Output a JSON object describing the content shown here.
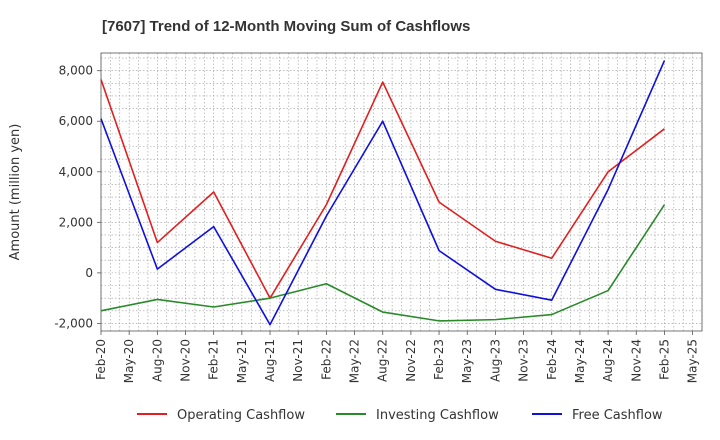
{
  "chart_data": {
    "type": "line",
    "title": "[7607]  Trend of 12-Month Moving Sum of Cashflows",
    "xlabel": "",
    "ylabel": "Amount (million yen)",
    "ylim": [
      -2300,
      8700
    ],
    "yticks": [
      -2000,
      0,
      2000,
      4000,
      6000,
      8000
    ],
    "ytick_labels": [
      "-2,000",
      "0",
      "2,000",
      "4,000",
      "6,000",
      "8,000"
    ],
    "x_start": "Feb-20",
    "x_ticks": [
      "Feb-20",
      "May-20",
      "Aug-20",
      "Nov-20",
      "Feb-21",
      "May-21",
      "Aug-21",
      "Nov-21",
      "Feb-22",
      "May-22",
      "Aug-22",
      "Nov-22",
      "Feb-23",
      "May-23",
      "Aug-23",
      "Nov-23",
      "Feb-24",
      "May-24",
      "Aug-24",
      "Nov-24",
      "Feb-25",
      "May-25"
    ],
    "x": [
      "Feb-20",
      "Aug-20",
      "Feb-21",
      "Aug-21",
      "Feb-22",
      "Aug-22",
      "Feb-23",
      "Aug-23",
      "Feb-24",
      "Aug-24",
      "Feb-25"
    ],
    "grid": true,
    "legend_position": "bottom",
    "series": [
      {
        "name": "Operating Cashflow",
        "color": "#e02020",
        "values": [
          7650,
          1200,
          3200,
          -1000,
          2700,
          7550,
          2800,
          1250,
          580,
          4000,
          5700
        ]
      },
      {
        "name": "Investing Cashflow",
        "color": "#2a8a2a",
        "values": [
          -1500,
          -1050,
          -1350,
          -1000,
          -430,
          -1550,
          -1900,
          -1850,
          -1650,
          -700,
          2700
        ]
      },
      {
        "name": "Free Cashflow",
        "color": "#1010dd",
        "values": [
          6100,
          150,
          1830,
          -2050,
          2250,
          6000,
          880,
          -650,
          -1080,
          3300,
          8400
        ]
      }
    ]
  }
}
